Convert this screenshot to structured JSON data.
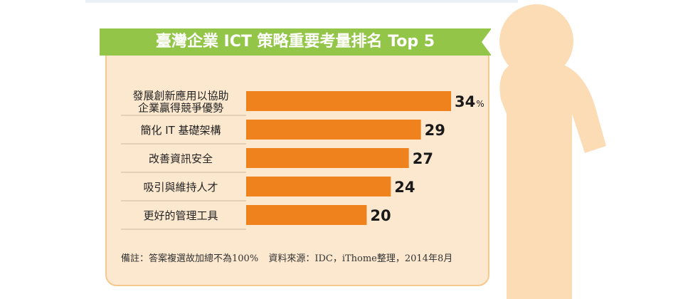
{
  "chart_data": {
    "type": "bar",
    "orientation": "horizontal",
    "title": "臺灣企業 ICT 策略重要考量排名 Top 5",
    "categories": [
      [
        "發展創新應用以協助",
        "企業贏得競爭優勢"
      ],
      [
        "簡化 IT 基礎架構"
      ],
      [
        "改善資訊安全"
      ],
      [
        "吸引與維持人才"
      ],
      [
        "更好的管理工具"
      ]
    ],
    "values": [
      34,
      29,
      27,
      24,
      20
    ],
    "value_labels": [
      "34",
      "29",
      "27",
      "24",
      "20"
    ],
    "unit": "%",
    "xlim": [
      0,
      34
    ],
    "bar_color": "#f0821e",
    "grid": false
  },
  "footnote": {
    "note": "備註：答案複選故加總不為100%",
    "source": "資料來源：IDC，iThome整理，2014年8月"
  },
  "colors": {
    "banner": "#93c548",
    "card": "#fce8cf",
    "card_border": "#f4c98f",
    "figure": "#fbdcb4"
  },
  "decoration": "person-silhouette"
}
